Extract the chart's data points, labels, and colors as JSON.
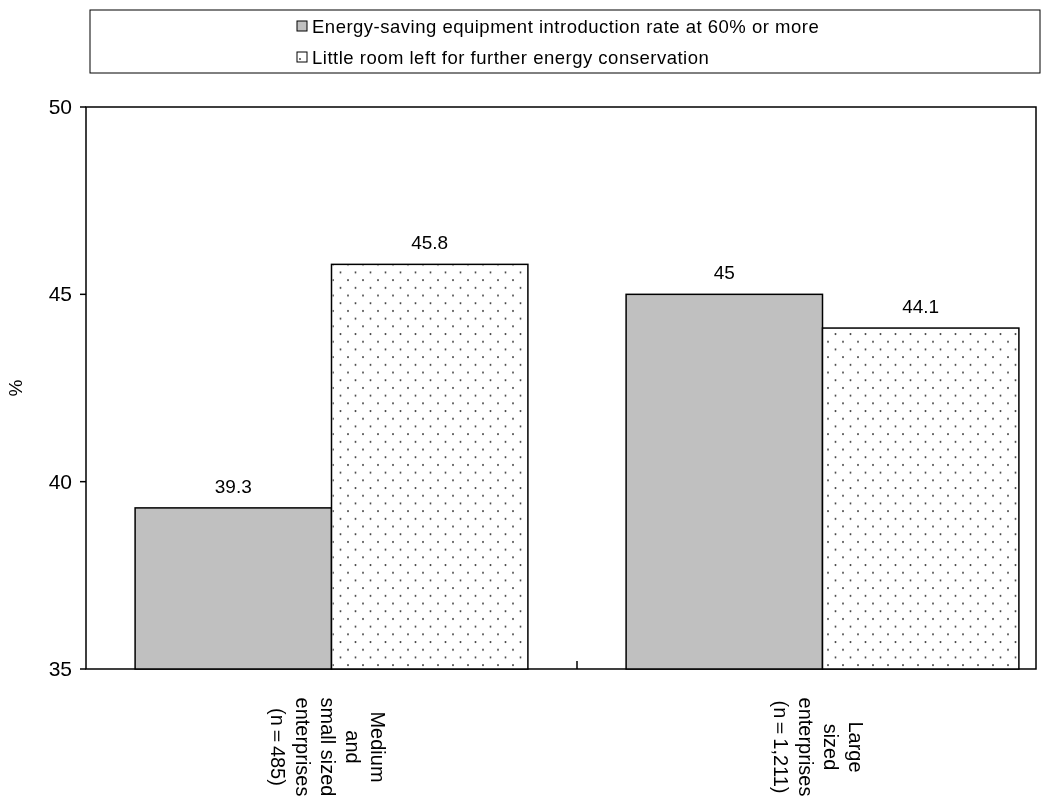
{
  "chart_data": {
    "type": "bar",
    "ylabel": "%",
    "categories": [
      "Medium\nand\nsmall sized\nenterprises\n(n＝485)",
      "Large\nsized\nenterprises\n(n＝1,211)"
    ],
    "series": [
      {
        "name": "Energy-saving equipment introduction rate at 60% or more",
        "color": "#c0c0c0",
        "values": [
          39.3,
          45
        ]
      },
      {
        "name": "Little room left for further energy conservation",
        "color": "#ffffff",
        "values": [
          45.8,
          44.1
        ]
      }
    ],
    "ylim": [
      35,
      50
    ],
    "yticks": [
      35,
      40,
      45,
      50
    ],
    "legend": "top",
    "data_labels": true
  }
}
